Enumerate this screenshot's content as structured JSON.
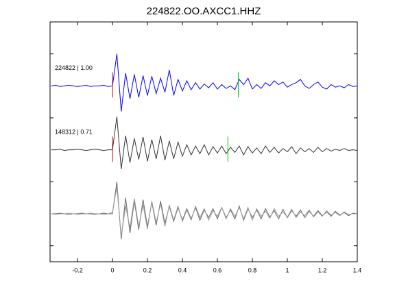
{
  "chart_data": {
    "type": "line",
    "title": "224822.OO.AXCC1.HHZ",
    "xlim": [
      -0.357,
      1.4
    ],
    "xticks": [
      -0.2,
      0,
      0.2,
      0.4,
      0.6,
      0.8,
      1,
      1.2,
      1.4
    ],
    "ylim": [
      -0.25,
      3.5
    ],
    "yticks": [
      0,
      1,
      2,
      3
    ],
    "x": [
      -0.35,
      -0.325,
      -0.3,
      -0.275,
      -0.25,
      -0.225,
      -0.2,
      -0.175,
      -0.15,
      -0.125,
      -0.1,
      -0.075,
      -0.05,
      -0.025,
      0,
      0.025,
      0.05,
      0.075,
      0.1,
      0.125,
      0.15,
      0.175,
      0.2,
      0.225,
      0.25,
      0.275,
      0.3,
      0.325,
      0.35,
      0.375,
      0.4,
      0.425,
      0.45,
      0.475,
      0.5,
      0.525,
      0.55,
      0.575,
      0.6,
      0.625,
      0.65,
      0.675,
      0.7,
      0.725,
      0.75,
      0.775,
      0.8,
      0.825,
      0.85,
      0.875,
      0.9,
      0.925,
      0.95,
      0.975,
      1,
      1.025,
      1.05,
      1.075,
      1.1,
      1.125,
      1.15,
      1.175,
      1.2,
      1.225,
      1.25,
      1.275,
      1.3,
      1.325,
      1.35,
      1.375,
      1.4
    ],
    "series": [
      {
        "name": "224822 | 1.00",
        "color": "#0000ff",
        "values": [
          2.5,
          2.51,
          2.49,
          2.5,
          2.51,
          2.5,
          2.49,
          2.5,
          2.51,
          2.49,
          2.5,
          2.5,
          2.51,
          2.49,
          2.5,
          3.0,
          2.1,
          2.7,
          2.3,
          2.68,
          2.32,
          2.66,
          2.35,
          2.65,
          2.38,
          2.62,
          2.4,
          2.75,
          2.35,
          2.6,
          2.42,
          2.58,
          2.44,
          2.55,
          2.45,
          2.53,
          2.47,
          2.55,
          2.45,
          2.52,
          2.46,
          2.5,
          2.44,
          2.6,
          2.52,
          2.62,
          2.45,
          2.52,
          2.46,
          2.55,
          2.5,
          2.58,
          2.52,
          2.56,
          2.48,
          2.52,
          2.55,
          2.6,
          2.5,
          2.46,
          2.52,
          2.56,
          2.48,
          2.45,
          2.52,
          2.48,
          2.5,
          2.47,
          2.52,
          2.49,
          2.5
        ],
        "markers": [
          {
            "x": 0,
            "color": "#d00000"
          },
          {
            "x": 0.72,
            "color": "#00cc00"
          }
        ]
      },
      {
        "name": "148312 | 0.71",
        "color": "#333333",
        "values": [
          1.5,
          1.5,
          1.51,
          1.49,
          1.5,
          1.5,
          1.51,
          1.5,
          1.49,
          1.5,
          1.51,
          1.5,
          1.49,
          1.5,
          1.5,
          2.02,
          1.2,
          1.72,
          1.3,
          1.68,
          1.35,
          1.7,
          1.32,
          1.66,
          1.36,
          1.72,
          1.34,
          1.64,
          1.36,
          1.62,
          1.4,
          1.58,
          1.42,
          1.56,
          1.44,
          1.58,
          1.42,
          1.55,
          1.45,
          1.56,
          1.44,
          1.54,
          1.46,
          1.56,
          1.42,
          1.55,
          1.45,
          1.53,
          1.44,
          1.56,
          1.46,
          1.54,
          1.45,
          1.52,
          1.47,
          1.55,
          1.44,
          1.53,
          1.47,
          1.52,
          1.46,
          1.54,
          1.47,
          1.52,
          1.48,
          1.51,
          1.49,
          1.52,
          1.49,
          1.5,
          1.49
        ],
        "markers": [
          {
            "x": 0,
            "color": "#d00000"
          },
          {
            "x": 0.66,
            "color": "#00cc00"
          }
        ]
      },
      {
        "color": "#666666",
        "values": [
          0.5,
          0.5,
          0.51,
          0.5,
          0.49,
          0.5,
          0.5,
          0.51,
          0.5,
          0.5,
          0.49,
          0.5,
          0.51,
          0.5,
          0.5,
          1.0,
          0.1,
          0.75,
          0.2,
          0.7,
          0.25,
          0.72,
          0.3,
          0.68,
          0.32,
          0.7,
          0.35,
          0.62,
          0.38,
          0.6,
          0.4,
          0.58,
          0.42,
          0.6,
          0.4,
          0.56,
          0.44,
          0.58,
          0.42,
          0.6,
          0.44,
          0.56,
          0.42,
          0.62,
          0.4,
          0.58,
          0.44,
          0.56,
          0.42,
          0.58,
          0.45,
          0.55,
          0.42,
          0.57,
          0.44,
          0.55,
          0.46,
          0.56,
          0.44,
          0.54,
          0.46,
          0.55,
          0.47,
          0.53,
          0.46,
          0.54,
          0.48,
          0.52,
          0.47,
          0.51,
          0.5
        ]
      },
      {
        "color": "#999999",
        "values": [
          0.5,
          0.49,
          0.5,
          0.5,
          0.51,
          0.5,
          0.49,
          0.5,
          0.5,
          0.51,
          0.5,
          0.5,
          0.49,
          0.5,
          0.52,
          0.92,
          0.15,
          0.62,
          0.28,
          0.74,
          0.3,
          0.64,
          0.26,
          0.7,
          0.36,
          0.66,
          0.3,
          0.64,
          0.4,
          0.62,
          0.38,
          0.56,
          0.4,
          0.62,
          0.44,
          0.58,
          0.4,
          0.55,
          0.46,
          0.6,
          0.42,
          0.58,
          0.46,
          0.6,
          0.42,
          0.6,
          0.4,
          0.58,
          0.46,
          0.54,
          0.43,
          0.58,
          0.46,
          0.53,
          0.45,
          0.57,
          0.44,
          0.53,
          0.47,
          0.56,
          0.45,
          0.53,
          0.46,
          0.55,
          0.48,
          0.52,
          0.47,
          0.53,
          0.49,
          0.5,
          0.5
        ]
      }
    ]
  }
}
